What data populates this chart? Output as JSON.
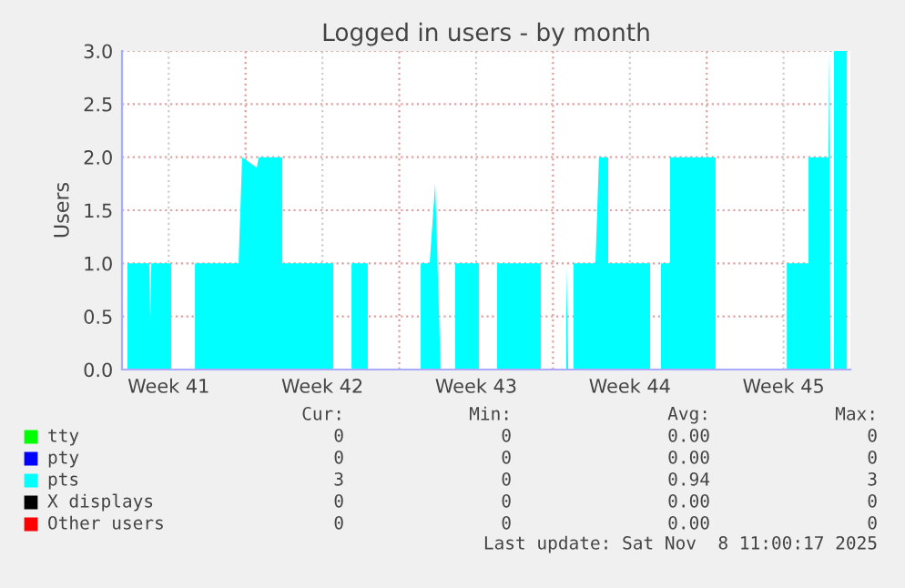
{
  "chart_data": {
    "type": "area",
    "title": "Logged in users - by month",
    "ylabel": "Users",
    "xlim": [
      "2025-10-07T09:00",
      "2025-11-09T13:00"
    ],
    "ylim": [
      0,
      3.0
    ],
    "xticks": [
      {
        "value": "2025-10-09T12:00",
        "label": "Week 41"
      },
      {
        "value": "2025-10-13T00:00",
        "label": null
      },
      {
        "value": "2025-10-16T12:00",
        "label": "Week 42"
      },
      {
        "value": "2025-10-20T00:00",
        "label": null
      },
      {
        "value": "2025-10-23T12:00",
        "label": "Week 43"
      },
      {
        "value": "2025-10-27T00:00",
        "label": null
      },
      {
        "value": "2025-10-30T12:00",
        "label": "Week 44"
      },
      {
        "value": "2025-11-03T00:00",
        "label": null
      },
      {
        "value": "2025-11-06T12:00",
        "label": "Week 45"
      }
    ],
    "yticks": [
      {
        "value": 0,
        "label": "0.0"
      },
      {
        "value": 0.5,
        "label": "0.5"
      },
      {
        "value": 1.0,
        "label": "1.0"
      },
      {
        "value": 1.5,
        "label": "1.5"
      },
      {
        "value": 2.0,
        "label": "2.0"
      },
      {
        "value": 2.5,
        "label": "2.5"
      },
      {
        "value": 3.0,
        "label": "3.0"
      }
    ],
    "grid": true,
    "legend": "bottom",
    "series": [
      {
        "name": "tty",
        "color": "#00ff00"
      },
      {
        "name": "pty",
        "color": "#0000ff"
      },
      {
        "name": "pts",
        "color": "#00ffff",
        "x": [
          "2025-10-07T15:00",
          "2025-10-08T14:45",
          "2025-10-08T16:00",
          "2025-10-08T17:00",
          "2025-10-09T14:45",
          "2025-10-09T14:45",
          "2025-10-10T16:40",
          "2025-10-10T16:40",
          "2025-10-12T16:25",
          "2025-10-12T20:15",
          "2025-10-13T12:20",
          "2025-10-13T14:15",
          "2025-10-14T16:10",
          "2025-10-14T16:10",
          "2025-10-16T23:50",
          "2025-10-16T23:50",
          "2025-10-17T19:50",
          "2025-10-17T19:50",
          "2025-10-18T13:35",
          "2025-10-18T13:35",
          "2025-10-20T23:25",
          "2025-10-20T23:25",
          "2025-10-21T09:15",
          "2025-10-21T15:15",
          "2025-10-21T21:15",
          "2025-10-22T13:05",
          "2025-10-22T13:05",
          "2025-10-23T15:00",
          "2025-10-23T15:00",
          "2025-10-24T10:55",
          "2025-10-24T10:55",
          "2025-10-26T10:40",
          "2025-10-26T10:40",
          "2025-10-27T14:30",
          "2025-10-27T14:30",
          "2025-10-27T16:40",
          "2025-10-27T22:25",
          "2025-10-27T22:25",
          "2025-10-28T22:25",
          "2025-10-29T02:15",
          "2025-10-29T12:20",
          "2025-10-29T12:20",
          "2025-10-31T10:10",
          "2025-10-31T10:10",
          "2025-10-31T22:00",
          "2025-10-31T22:00",
          "2025-11-01T08:00",
          "2025-11-01T08:00",
          "2025-11-03T09:45",
          "2025-11-03T09:45",
          "2025-11-06T15:30",
          "2025-11-06T15:30",
          "2025-11-07T15:15",
          "2025-11-07T15:15",
          "2025-11-08T13:05",
          "2025-11-08T14:00",
          "2025-11-08T15:15",
          "2025-11-08T19:05",
          "2025-11-08T19:05",
          "2025-11-09T09:00"
        ],
        "values": [
          1,
          1,
          0.43,
          1,
          1,
          0,
          0,
          1,
          1,
          2,
          1.9,
          2,
          2,
          1,
          1,
          0,
          0,
          1,
          1,
          0,
          0,
          1,
          1,
          1.75,
          0,
          0,
          1,
          1,
          0,
          0,
          1,
          1,
          0,
          0,
          1,
          0,
          0,
          1,
          1,
          2,
          2,
          1,
          1,
          0,
          0,
          1,
          1,
          2,
          2,
          0,
          0,
          1,
          1,
          2,
          2,
          3,
          0,
          0,
          3,
          3
        ]
      },
      {
        "name": "X displays",
        "color": "#000000"
      },
      {
        "name": "Other users",
        "color": "#ff0000"
      }
    ],
    "annotations": [
      "Cur:",
      "Min:",
      "Avg:",
      "Max:",
      "0",
      "0",
      "0.00",
      "0",
      "0",
      "0",
      "0.00",
      "0",
      "3",
      "0",
      "0.94",
      "3",
      "0",
      "0",
      "0.00",
      "0",
      "0",
      "0",
      "0.00",
      "0",
      "Last update: Sat Nov  8 11:00:17 2025"
    ]
  }
}
